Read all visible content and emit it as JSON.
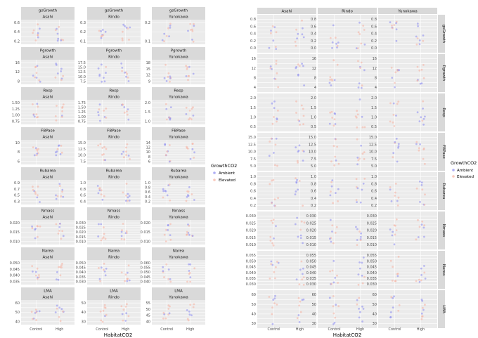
{
  "chart_data": [
    {
      "type": "scatter",
      "facets": {
        "sites": [
          "Asahi",
          "Rindo",
          "Yunokawa"
        ],
        "variables": [
          {
            "name": "gsGrowth",
            "ticks": {
              "Asahi": [
                0.2,
                0.4,
                0.6
              ],
              "Rindo": [
                0.1,
                0.2,
                0.3
              ],
              "Yunokawa": [
                0.1,
                0.2
              ]
            }
          },
          {
            "name": "Pgrowth",
            "ticks": {
              "Asahi": [
                8,
                12,
                16
              ],
              "Rindo": [
                7.5,
                10.0,
                12.5,
                15.0,
                17.5
              ],
              "Yunokawa": [
                9,
                12,
                15,
                18
              ]
            }
          },
          {
            "name": "Resp",
            "ticks": {
              "Asahi": [
                0.75,
                1.0,
                1.25,
                1.5
              ],
              "Rindo": [
                0.75,
                1.0,
                1.25,
                1.5,
                1.75
              ],
              "Yunokawa": [
                1.0,
                1.5,
                2.0
              ]
            }
          },
          {
            "name": "FBPase",
            "ticks": {
              "Asahi": [
                6,
                8,
                10
              ],
              "Rindo": [
                7.5,
                10.0,
                12.5,
                15.0
              ],
              "Yunokawa": [
                6,
                8,
                10,
                12,
                14
              ]
            }
          },
          {
            "name": "Rubarea",
            "ticks": {
              "Asahi": [
                0.3,
                0.5,
                0.7,
                0.9
              ],
              "Rindo": [
                0.4,
                0.6,
                0.8,
                1.0
              ],
              "Yunokawa": [
                0.2,
                0.4,
                0.6,
                0.8,
                1.0
              ]
            }
          },
          {
            "name": "Nmass",
            "ticks": {
              "Asahi": [
                0.01,
                0.015,
                0.02
              ],
              "Rindo": [
                0.01,
                0.015,
                0.02,
                0.025,
                0.03
              ],
              "Yunokawa": [
                0.01,
                0.015,
                0.02
              ]
            }
          },
          {
            "name": "Narea",
            "ticks": {
              "Asahi": [
                0.035,
                0.04,
                0.045,
                0.05
              ],
              "Rindo": [
                0.03,
                0.035,
                0.04,
                0.045,
                0.05
              ],
              "Yunokawa": [
                0.04,
                0.045,
                0.05,
                0.055,
                0.06
              ]
            }
          },
          {
            "name": "LMA",
            "ticks": {
              "Asahi": [
                40,
                50,
                60
              ],
              "Rindo": [
                30,
                40,
                50
              ],
              "Yunokawa": [
                40,
                45,
                50,
                55
              ]
            }
          }
        ]
      },
      "categories": [
        "Control",
        "High"
      ],
      "xlabel": "HabitatCO2",
      "legend": {
        "title": "GrowthCO2",
        "entries": [
          "Ambient",
          "Elevated"
        ],
        "placement": "right"
      }
    },
    {
      "type": "scatter",
      "facets": {
        "sites": [
          "Asahi",
          "Rindo",
          "Yunokawa"
        ],
        "variables": [
          {
            "name": "gsGrowth",
            "ticks": [
              0.0,
              0.2,
              0.4,
              0.6,
              0.8
            ]
          },
          {
            "name": "Pgrowth",
            "ticks": [
              4,
              8,
              12,
              16
            ]
          },
          {
            "name": "Resp",
            "ticks": [
              0.5,
              1.0,
              1.5,
              2.0
            ]
          },
          {
            "name": "FBPase",
            "ticks": [
              5.0,
              7.5,
              10.0,
              12.5,
              15.0
            ]
          },
          {
            "name": "Rubarea",
            "ticks": [
              0.2,
              0.4,
              0.6,
              0.8,
              1.0
            ]
          },
          {
            "name": "Nmass",
            "ticks": [
              0.01,
              0.015,
              0.02,
              0.025,
              0.03
            ]
          },
          {
            "name": "Narea",
            "ticks": [
              0.03,
              0.035,
              0.04,
              0.045,
              0.05,
              0.055
            ]
          },
          {
            "name": "LMA",
            "ticks": [
              30,
              40,
              50,
              60
            ]
          }
        ]
      },
      "categories": [
        "Control",
        "High"
      ],
      "xlabel": "HabitatCO2",
      "legend": {
        "title": "GrowthCO2",
        "entries": [
          "Ambient",
          "Elevated"
        ],
        "placement": "right"
      }
    }
  ],
  "colors": {
    "Ambient": "#8b8bf0",
    "Elevated": "#f6b0a0"
  }
}
